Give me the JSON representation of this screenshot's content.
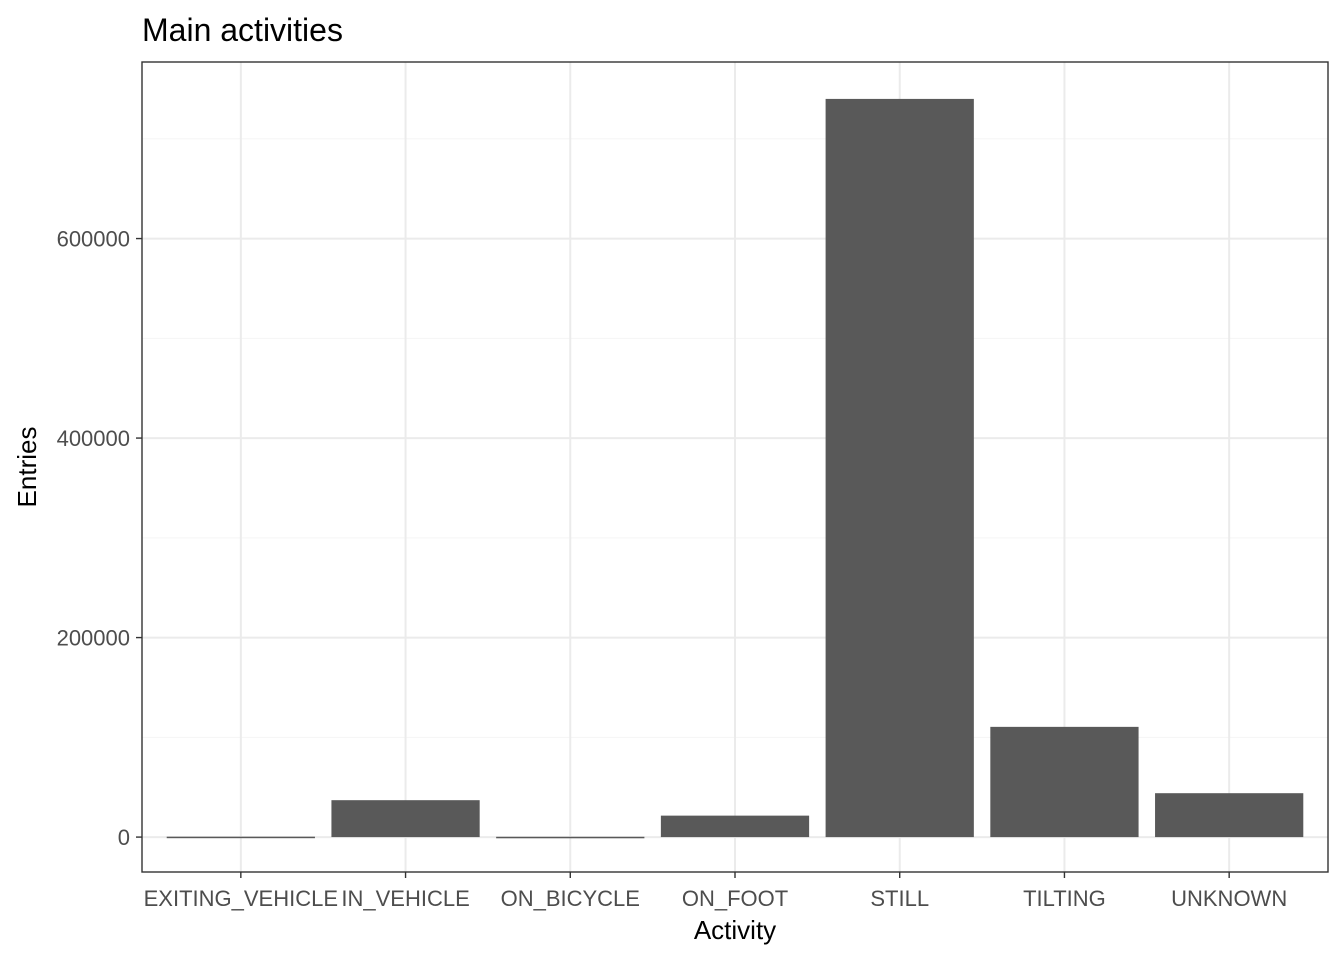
{
  "chart_data": {
    "type": "bar",
    "title": "Main activities",
    "xlabel": "Activity",
    "ylabel": "Entries",
    "categories": [
      "EXITING_VEHICLE",
      "IN_VEHICLE",
      "ON_BICYCLE",
      "ON_FOOT",
      "STILL",
      "TILTING",
      "UNKNOWN"
    ],
    "values": [
      400,
      37000,
      300,
      21500,
      740000,
      110500,
      44000
    ],
    "yticks": [
      0,
      200000,
      400000,
      600000
    ],
    "ytick_labels": [
      "0",
      "200000",
      "400000",
      "600000"
    ],
    "ylim": [
      -35000,
      777000
    ],
    "grid": true,
    "legend": "none",
    "colors": {
      "bar": "#595959",
      "grid_major": "#ebebeb",
      "grid_minor": "#f5f5f5",
      "panel_border": "#333333",
      "tick_label": "#4d4d4d",
      "axis_title": "#000000"
    }
  }
}
